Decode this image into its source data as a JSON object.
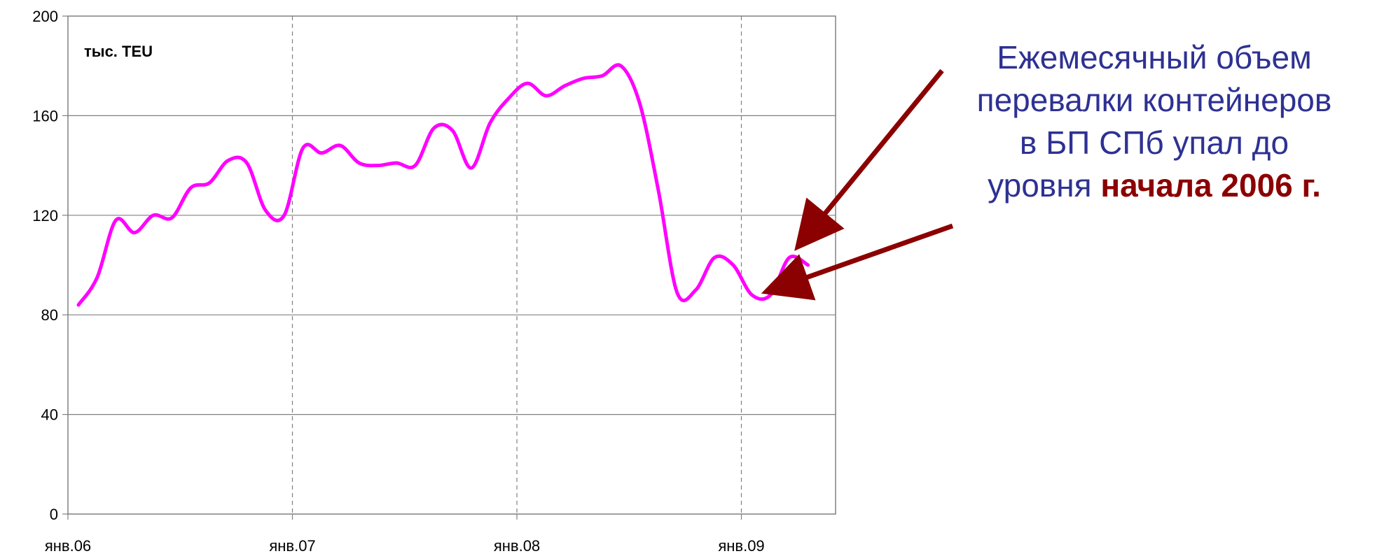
{
  "chart_data": {
    "type": "line",
    "unit_label": "тыс. TEU",
    "ylim": [
      0,
      200
    ],
    "y_ticks": [
      0,
      40,
      80,
      120,
      160,
      200
    ],
    "y_tick_labels": [
      "0",
      "40",
      "80",
      "120",
      "160",
      "200"
    ],
    "x_tick_labels": [
      "янв.06",
      "янв.07",
      "янв.08",
      "янв.09"
    ],
    "grid": "horizontal solid, vertical dashed at year starts",
    "series": [
      {
        "color": "#ff00ff",
        "x": [
          "2006-01",
          "2006-02",
          "2006-03",
          "2006-04",
          "2006-05",
          "2006-06",
          "2006-07",
          "2006-08",
          "2006-09",
          "2006-10",
          "2006-11",
          "2006-12",
          "2007-01",
          "2007-02",
          "2007-03",
          "2007-04",
          "2007-05",
          "2007-06",
          "2007-07",
          "2007-08",
          "2007-09",
          "2007-10",
          "2007-11",
          "2007-12",
          "2008-01",
          "2008-02",
          "2008-03",
          "2008-04",
          "2008-05",
          "2008-06",
          "2008-07",
          "2008-08",
          "2008-09",
          "2008-10",
          "2008-11",
          "2008-12",
          "2009-01",
          "2009-02",
          "2009-03",
          "2009-04"
        ],
        "values": [
          84,
          95,
          118,
          113,
          120,
          119,
          131,
          133,
          142,
          141,
          122,
          120,
          147,
          145,
          148,
          141,
          140,
          141,
          140,
          155,
          154,
          139,
          157,
          167,
          173,
          168,
          172,
          175,
          176,
          180,
          165,
          130,
          89,
          90,
          103,
          100,
          88,
          88,
          103,
          100
        ]
      }
    ],
    "annotation": {
      "line1": "Ежемесячный объем",
      "line2": "перевалки контейнеров",
      "line3": "в БП СПб упал до",
      "line4_prefix": "уровня ",
      "line4_highlight": "начала 2006 г."
    },
    "colors": {
      "series": "#ff00ff",
      "annotation_text": "#2e3192",
      "highlight": "#8b0000",
      "arrow": "#8b0000"
    }
  }
}
